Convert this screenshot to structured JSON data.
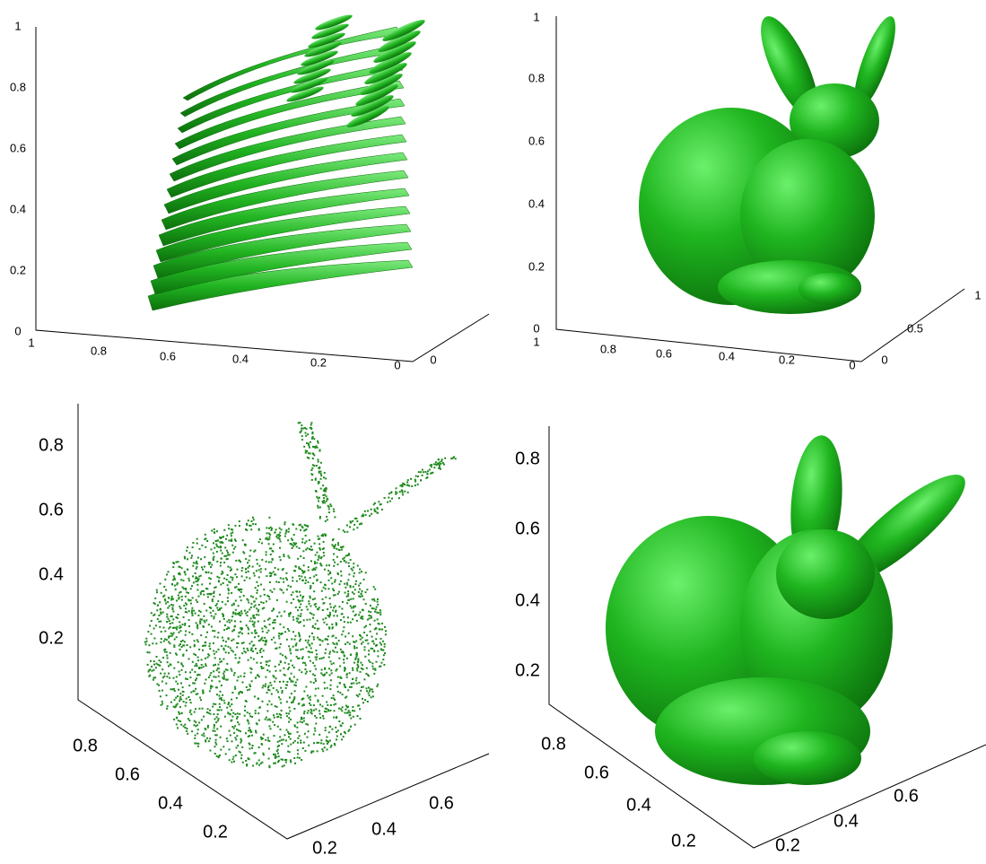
{
  "panels": [
    {
      "z_ticks": [
        1,
        0.8,
        0.6,
        0.4,
        0.2,
        0
      ],
      "x_ticks": [
        1,
        0.8,
        0.6,
        0.4,
        0.2,
        0
      ],
      "y_ticks": [
        0
      ]
    },
    {
      "z_ticks": [
        1,
        0.8,
        0.6,
        0.4,
        0.2,
        0
      ],
      "x_ticks": [
        1,
        0.8,
        0.6,
        0.4,
        0.2,
        0
      ],
      "y_ticks": [
        0,
        0.5,
        1
      ]
    },
    {
      "z_ticks": [
        0.8,
        0.6,
        0.4,
        0.2
      ],
      "x_ticks": [
        0.8,
        0.6,
        0.4,
        0.2
      ],
      "y_ticks": [
        0.2,
        0.4,
        0.6
      ]
    },
    {
      "z_ticks": [
        0.8,
        0.6,
        0.4,
        0.2
      ],
      "x_ticks": [
        0.8,
        0.6,
        0.4,
        0.2
      ],
      "y_ticks": [
        0.2,
        0.4,
        0.6
      ]
    }
  ]
}
